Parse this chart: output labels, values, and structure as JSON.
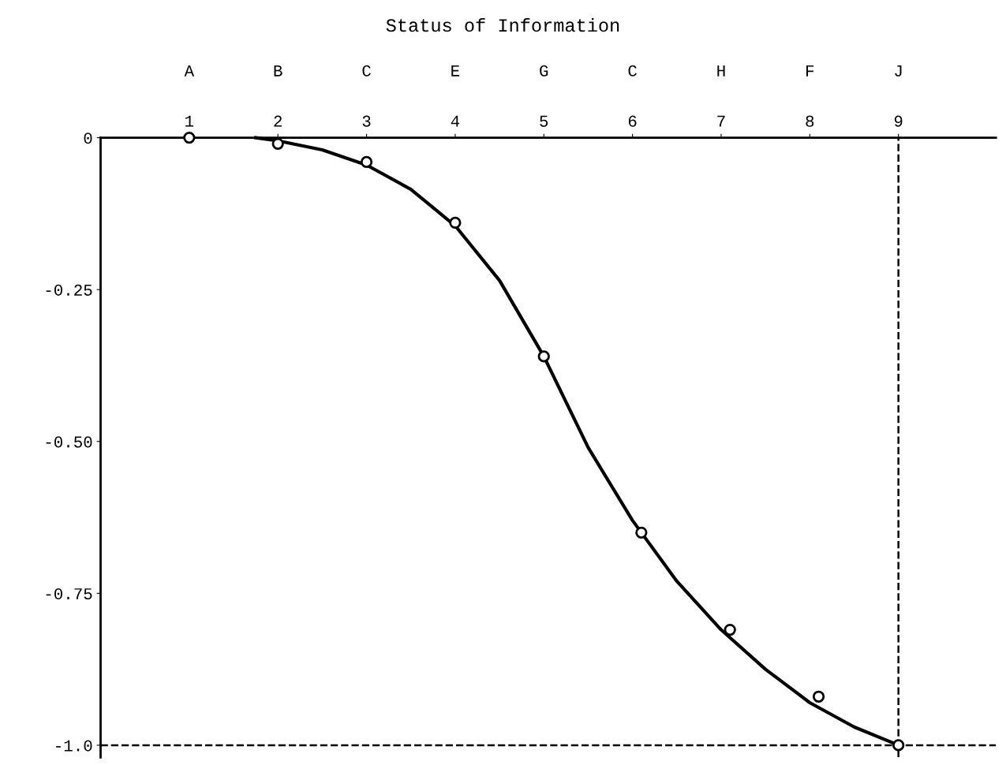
{
  "chart_data": {
    "type": "line",
    "title": "Status of Information",
    "xlim": [
      0,
      10.1
    ],
    "xticks": [
      1,
      2,
      3,
      4,
      5,
      6,
      7,
      8,
      9
    ],
    "annotations": [
      "A",
      "B",
      "C",
      "E",
      "G",
      "C",
      "H",
      "F",
      "J"
    ],
    "ylim": [
      -1.02,
      0
    ],
    "yticks": [
      {
        "value": 0,
        "label": "0"
      },
      {
        "value": -0.25,
        "label": "-0.25"
      },
      {
        "value": -0.5,
        "label": "-0.50"
      },
      {
        "value": -0.75,
        "label": "-0.75"
      },
      {
        "value": -1.0,
        "label": "-1.0"
      }
    ],
    "grid": false,
    "legend": false,
    "series": [
      {
        "type": "line",
        "color": "#000000",
        "marker": "none",
        "x": [
          1.75,
          2,
          2.5,
          3,
          3.5,
          4,
          4.5,
          5,
          5.5,
          6,
          6.5,
          7,
          7.5,
          8,
          8.5,
          9
        ],
        "values": [
          0,
          -0.005,
          -0.02,
          -0.045,
          -0.085,
          -0.145,
          -0.235,
          -0.36,
          -0.51,
          -0.63,
          -0.73,
          -0.81,
          -0.875,
          -0.93,
          -0.97,
          -1.0
        ]
      },
      {
        "type": "scatter",
        "color": "#000000",
        "marker": "circle",
        "x": [
          1,
          2,
          3,
          4,
          5,
          6.1,
          7.1,
          8.1,
          9
        ],
        "values": [
          0,
          -0.01,
          -0.04,
          -0.14,
          -0.36,
          -0.65,
          -0.81,
          -0.92,
          -1.0
        ]
      }
    ],
    "ref_lines": [
      {
        "axis": "x",
        "value": 9,
        "line_style": "dashed",
        "color": "#000000"
      },
      {
        "axis": "y",
        "value": -1.0,
        "line_style": "dashed",
        "color": "#000000"
      }
    ]
  }
}
